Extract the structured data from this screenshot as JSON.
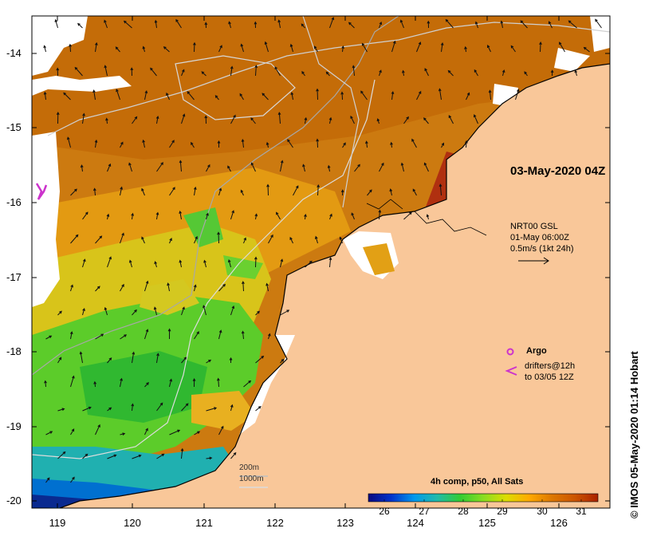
{
  "map": {
    "timestamp": "03-May-2020 04Z",
    "lat_ticks": [
      "-14",
      "-15",
      "-16",
      "-17",
      "-18",
      "-19",
      "-20"
    ],
    "lon_ticks": [
      "119",
      "120",
      "121",
      "122",
      "123",
      "124",
      "125",
      "126"
    ],
    "colors": {
      "land": "#f9c799",
      "nodata": "#ffffff",
      "coast": "#000000",
      "contour": "#c8c8c8"
    }
  },
  "currents": {
    "line1": "NRT00 GSL",
    "line2": "01-May 06:00Z",
    "line3": "0.5m/s (1kt 24h)"
  },
  "legend": {
    "argo_label": "Argo",
    "argo_color": "#cc33cc",
    "drifters_line1": "drifters@12h",
    "drifters_line2": "to 03/05 12Z"
  },
  "isobaths": {
    "label1": "200m",
    "label2": "1000m"
  },
  "colorbar": {
    "title": "4h comp, p50, All Sats",
    "ticks": [
      "26",
      "27",
      "28",
      "29",
      "30",
      "31"
    ],
    "stops": [
      "#0a0a80",
      "#0033cc",
      "#0099ee",
      "#22bbaa",
      "#33cc33",
      "#88dd22",
      "#dddd00",
      "#ffaa00",
      "#dd7700",
      "#cc5500",
      "#aa2200"
    ]
  },
  "credit": "© IMOS 05-May-2020 01:14 Hobart"
}
